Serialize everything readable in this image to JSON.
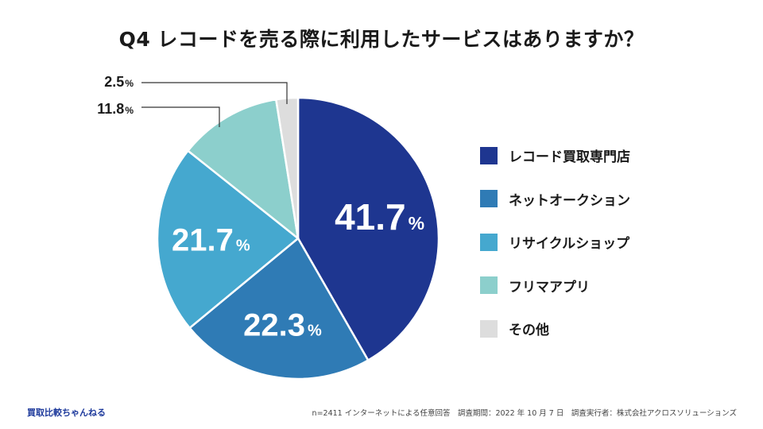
{
  "chart_data": {
    "type": "pie",
    "title": "Q4 レコードを売る際に利用したサービスはありますか？",
    "unit": "%",
    "slices": [
      {
        "label": "レコード買取専門店",
        "value": 41.7,
        "value_text": "41.7",
        "color": "#1e3690",
        "label_mode": "inside"
      },
      {
        "label": "ネットオークション",
        "value": 22.3,
        "value_text": "22.3",
        "color": "#2f7bb5",
        "label_mode": "inside"
      },
      {
        "label": "リサイクルショップ",
        "value": 21.7,
        "value_text": "21.7",
        "color": "#45a8cf",
        "label_mode": "inside"
      },
      {
        "label": "フリマアプリ",
        "value": 11.8,
        "value_text": "11.8",
        "color": "#8ccfcc",
        "label_mode": "callout"
      },
      {
        "label": "その他",
        "value": 2.5,
        "value_text": "2.5",
        "color": "#dddddd",
        "label_mode": "callout"
      }
    ]
  },
  "footer": {
    "brand": "買取比較ちゃんねる",
    "note": "n=2411 インターネットによる任意回答　調査期間：2022 年 10 月 7 日　調査実行者：株式会社アクロスソリューションズ"
  }
}
